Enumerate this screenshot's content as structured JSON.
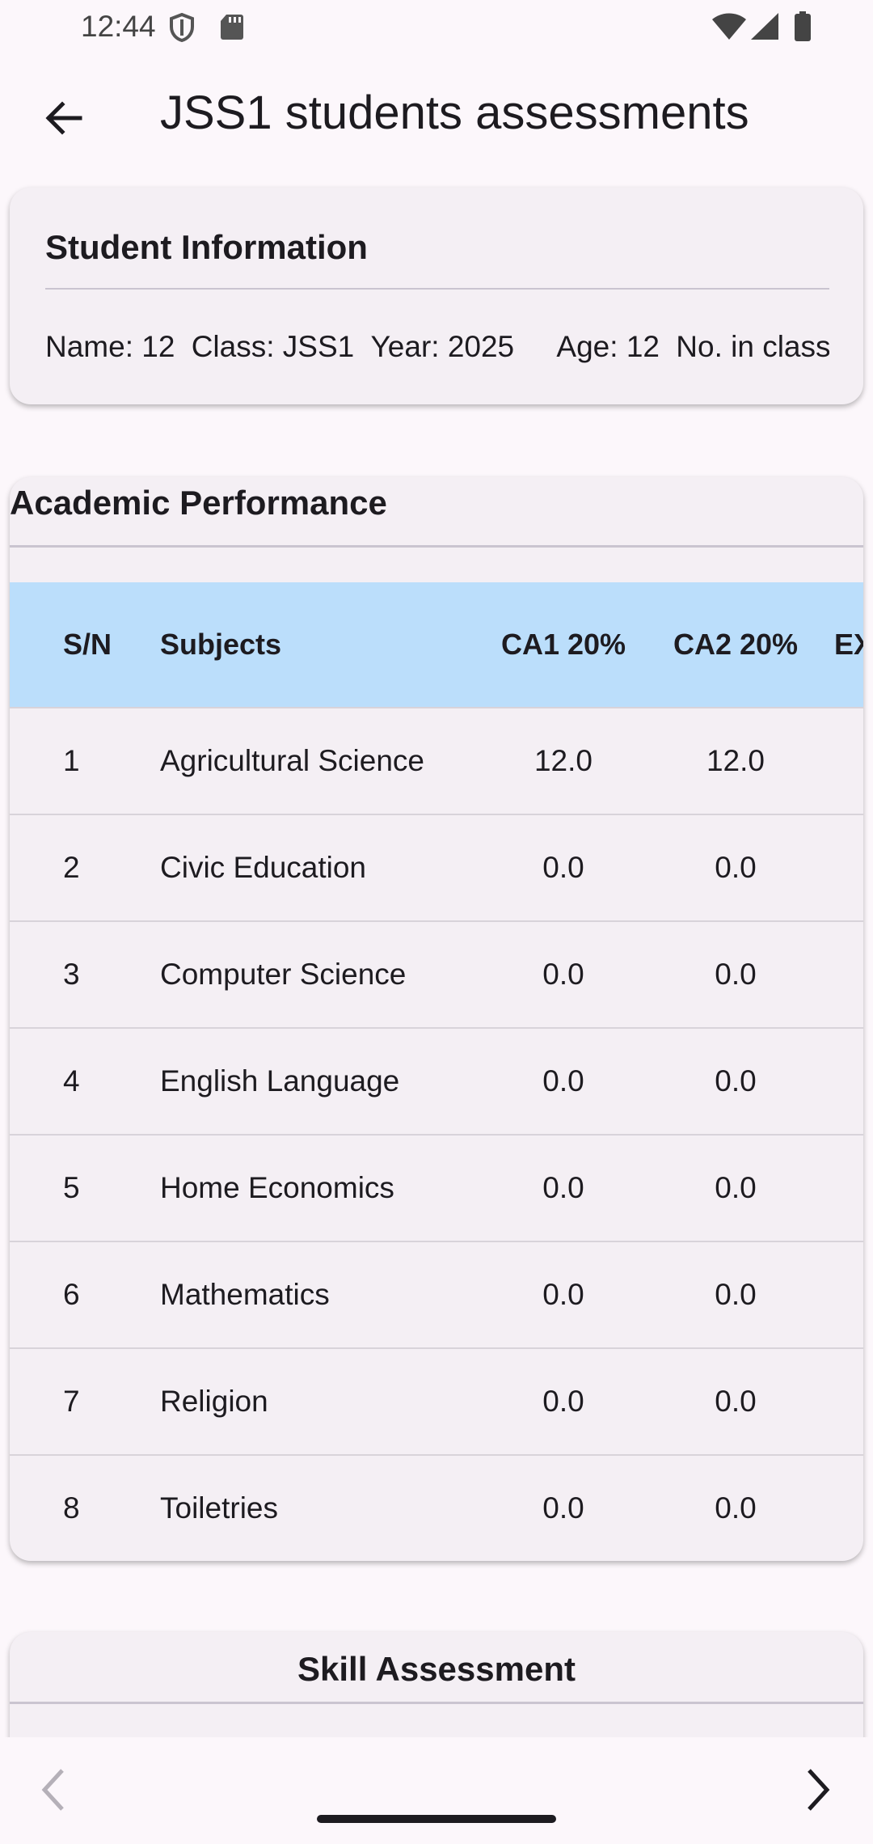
{
  "status_bar": {
    "time": "12:44",
    "icons": [
      "shield-icon",
      "sd-card-icon",
      "wifi-icon",
      "cell-signal-icon",
      "battery-icon"
    ]
  },
  "app_bar": {
    "title": "JSS1 students assessments",
    "back_icon": "arrow-back-icon"
  },
  "student_info": {
    "title": "Student Information",
    "fields": [
      "Name: 12",
      "Class: JSS1",
      "Year: 2025",
      "Age: 12",
      "No. in class"
    ]
  },
  "academic_performance": {
    "title": "Academic Performance",
    "header_color": "#bbdefb",
    "columns": [
      "S/N",
      "Subjects",
      "CA1 20%",
      "CA2 20%",
      "EX"
    ],
    "rows": [
      {
        "sn": "1",
        "subject": "Agricultural Science",
        "ca1": "12.0",
        "ca2": "12.0"
      },
      {
        "sn": "2",
        "subject": "Civic Education",
        "ca1": "0.0",
        "ca2": "0.0"
      },
      {
        "sn": "3",
        "subject": "Computer Science",
        "ca1": "0.0",
        "ca2": "0.0"
      },
      {
        "sn": "4",
        "subject": "English Language",
        "ca1": "0.0",
        "ca2": "0.0"
      },
      {
        "sn": "5",
        "subject": "Home Economics",
        "ca1": "0.0",
        "ca2": "0.0"
      },
      {
        "sn": "6",
        "subject": "Mathematics",
        "ca1": "0.0",
        "ca2": "0.0"
      },
      {
        "sn": "7",
        "subject": "Religion",
        "ca1": "0.0",
        "ca2": "0.0"
      },
      {
        "sn": "8",
        "subject": "Toiletries",
        "ca1": "0.0",
        "ca2": "0.0"
      }
    ]
  },
  "skill_assessment": {
    "title": "Skill Assessment"
  },
  "bottom_nav": {
    "prev_icon": "chevron-left-icon",
    "next_icon": "chevron-right-icon"
  }
}
